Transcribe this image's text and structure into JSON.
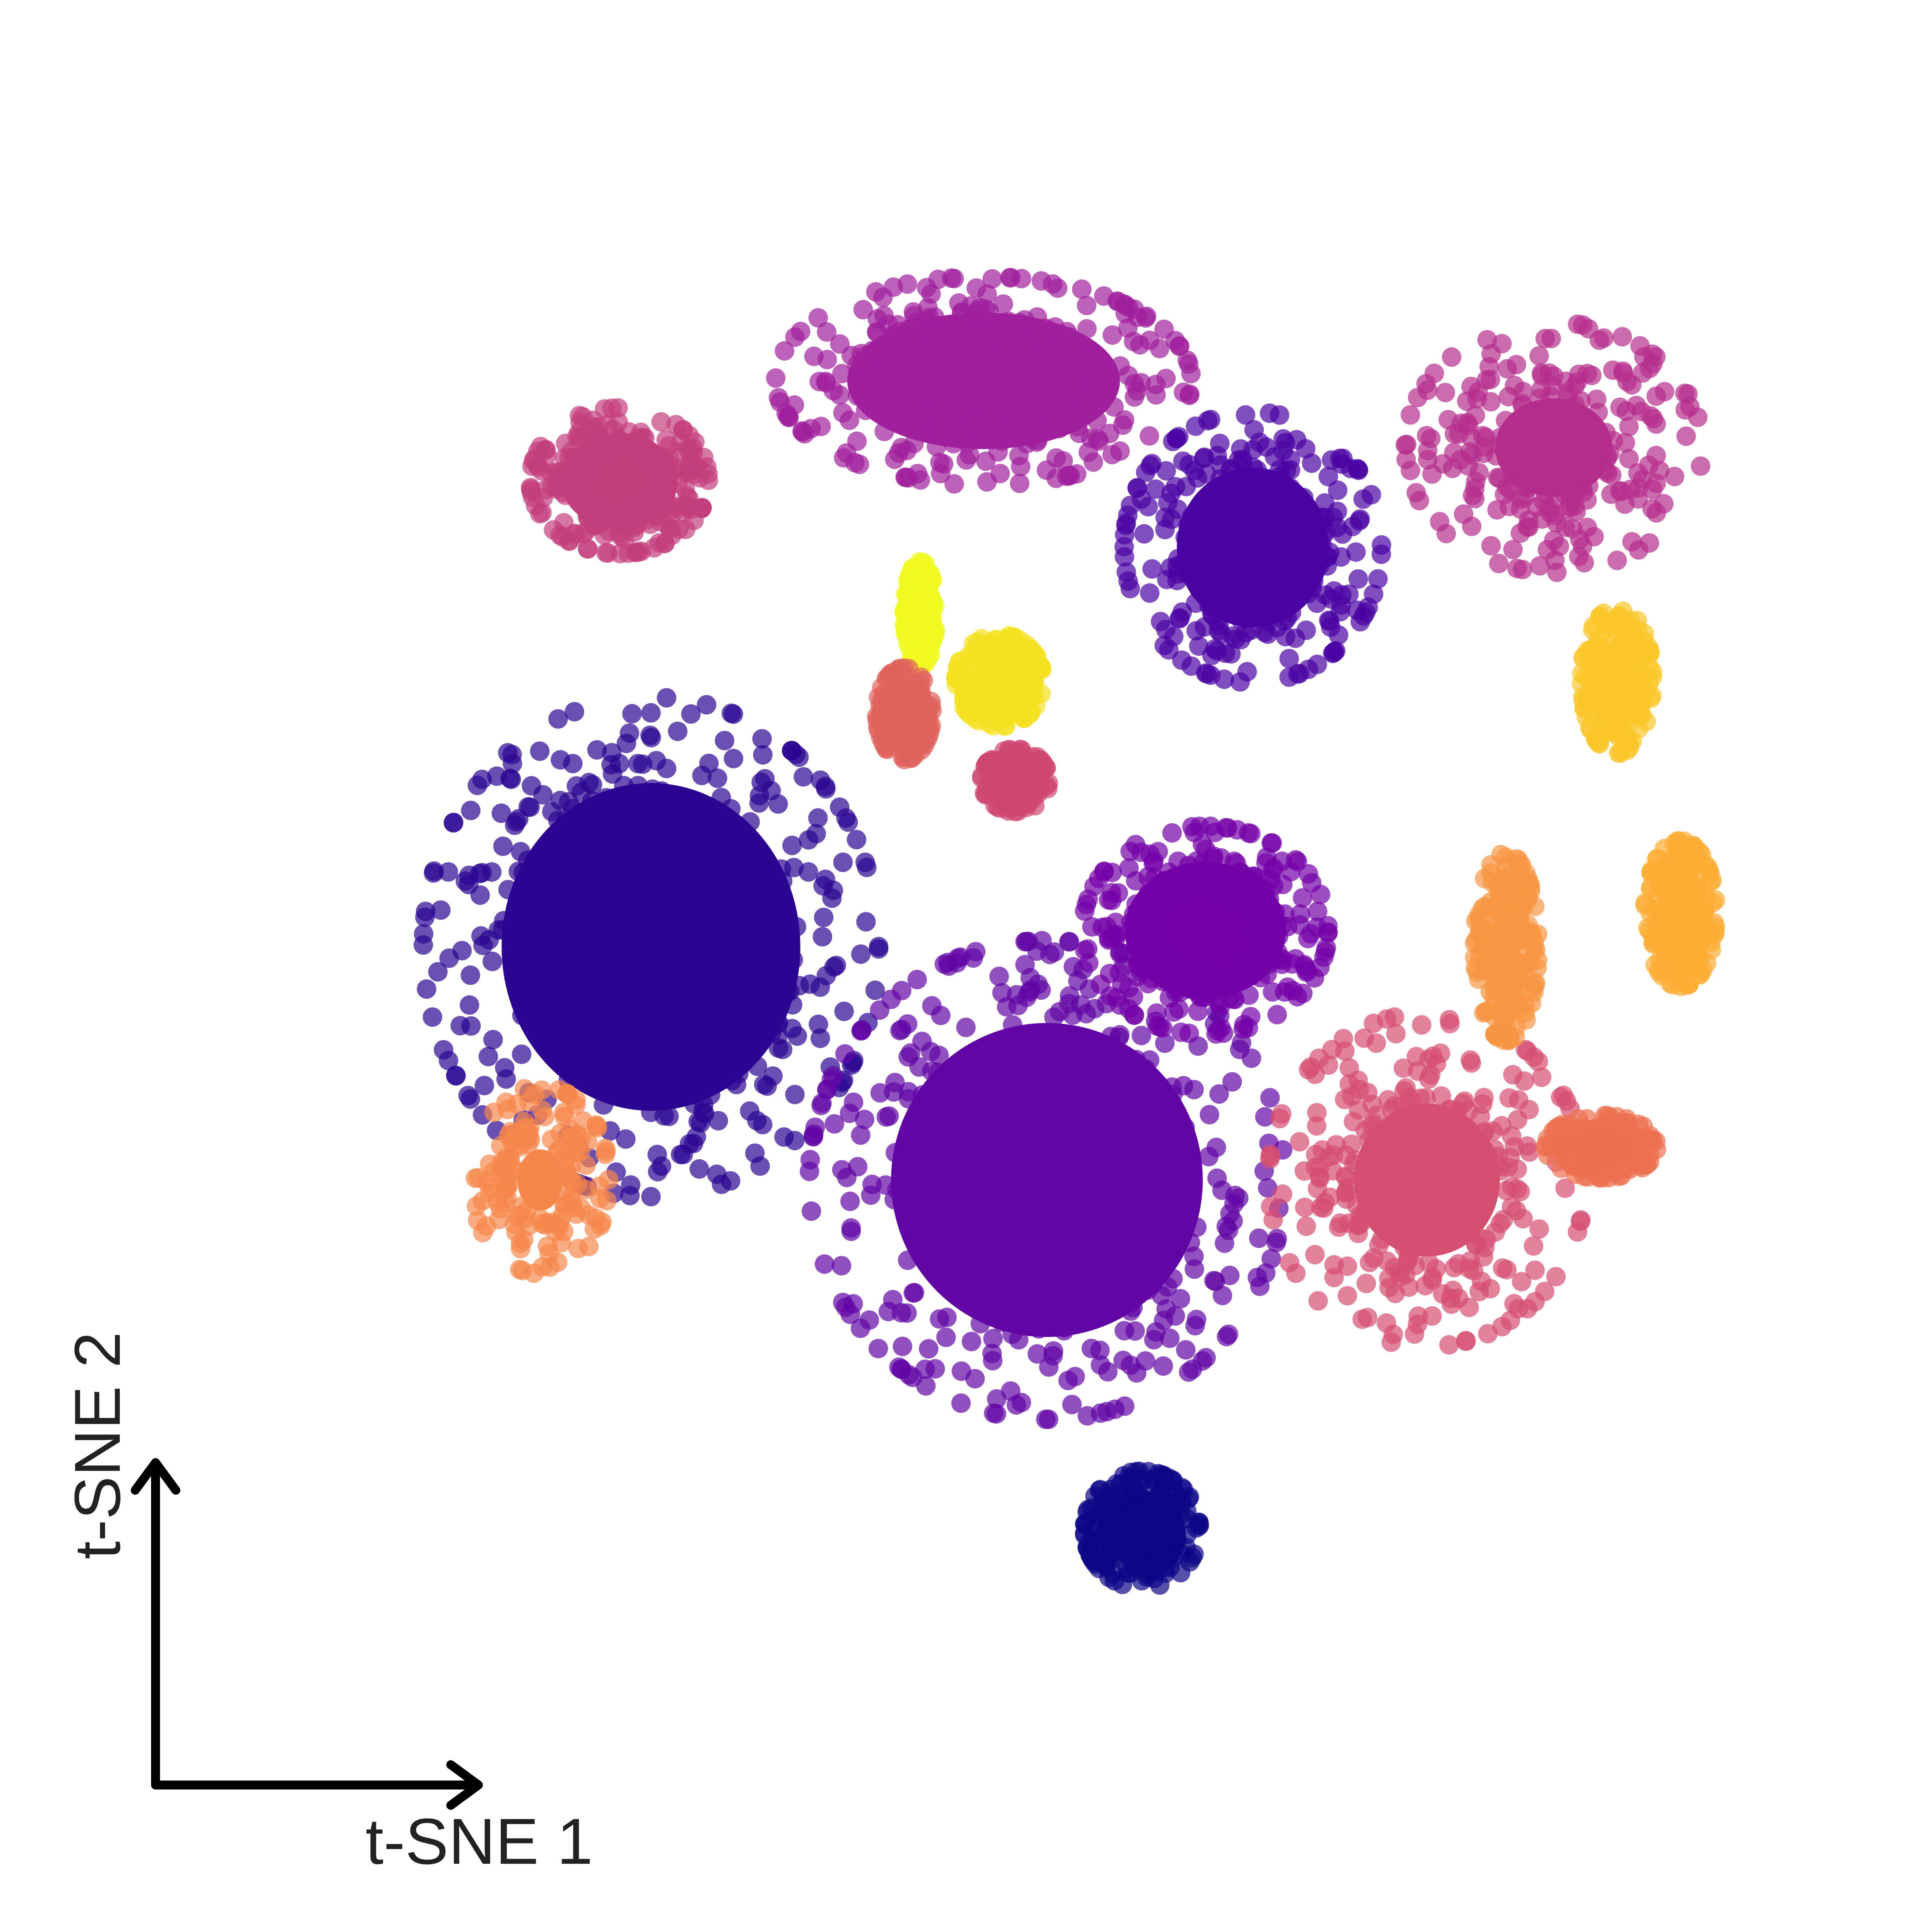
{
  "chart_data": {
    "type": "scatter",
    "title": "",
    "xlabel": "t-SNE 1",
    "ylabel": "t-SNE 2",
    "xlim": [
      0,
      100
    ],
    "ylim": [
      0,
      100
    ],
    "grid": false,
    "legend": "none",
    "colormap": "plasma",
    "point_opacity": 0.7,
    "clusters": [
      {
        "id": 1,
        "center": [
          48,
          82
        ],
        "spread": [
          10.5,
          5.0
        ],
        "density": 1.0,
        "color": "#a01f9d"
      },
      {
        "id": 2,
        "center": [
          25,
          76
        ],
        "spread": [
          4.5,
          3.5
        ],
        "density": 1.0,
        "color": "#c33f7c"
      },
      {
        "id": 3,
        "center": [
          65,
          72
        ],
        "spread": [
          6.5,
          6.5
        ],
        "density": 0.9,
        "color": "#4a03a2"
      },
      {
        "id": 4,
        "center": [
          27,
          48
        ],
        "spread": [
          11.5,
          12.0
        ],
        "density": 1.0,
        "color": "#2b0591"
      },
      {
        "id": 5,
        "center": [
          52,
          34
        ],
        "spread": [
          12.0,
          11.5
        ],
        "density": 1.0,
        "color": "#6105a5"
      },
      {
        "id": 6,
        "center": [
          62,
          49
        ],
        "spread": [
          6.2,
          5.0
        ],
        "density": 1.0,
        "color": "#7402a8"
      },
      {
        "id": 7,
        "center": [
          84,
          78
        ],
        "spread": [
          7.5,
          6.0
        ],
        "density": 0.6,
        "color": "#b52e8c"
      },
      {
        "id": 8,
        "center": [
          76,
          34
        ],
        "spread": [
          8.0,
          8.0
        ],
        "density": 0.7,
        "color": "#d54f70"
      },
      {
        "id": 9,
        "center": [
          58,
          13
        ],
        "spread": [
          2.9,
          2.8
        ],
        "density": 1.0,
        "color": "#0d0787"
      },
      {
        "id": 10,
        "center": [
          88,
          64
        ],
        "spread": [
          1.8,
          3.5
        ],
        "density": 0.8,
        "color": "#fbc62a"
      },
      {
        "id": 11,
        "center": [
          92,
          50
        ],
        "spread": [
          1.8,
          3.5
        ],
        "density": 0.8,
        "color": "#fcad33"
      },
      {
        "id": 12,
        "center": [
          81,
          48
        ],
        "spread": [
          1.6,
          4.5
        ],
        "density": 0.7,
        "color": "#f89642"
      },
      {
        "id": 13,
        "center": [
          87,
          36
        ],
        "spread": [
          2.8,
          1.5
        ],
        "density": 0.8,
        "color": "#ec7150"
      },
      {
        "id": 14,
        "center": [
          49,
          64
        ],
        "spread": [
          2.2,
          2.2
        ],
        "density": 0.9,
        "color": "#f5e121"
      },
      {
        "id": 15,
        "center": [
          44,
          68
        ],
        "spread": [
          0.8,
          2.5
        ],
        "density": 0.9,
        "color": "#f0f921"
      },
      {
        "id": 16,
        "center": [
          43,
          62
        ],
        "spread": [
          1.4,
          2.2
        ],
        "density": 0.7,
        "color": "#e0625c"
      },
      {
        "id": 17,
        "center": [
          50,
          58
        ],
        "spread": [
          1.7,
          1.5
        ],
        "density": 0.7,
        "color": "#cf476f"
      },
      {
        "id": 18,
        "center": [
          20,
          34
        ],
        "spread": [
          3.5,
          4.5
        ],
        "density": 0.5,
        "color": "#f6874b"
      }
    ]
  }
}
